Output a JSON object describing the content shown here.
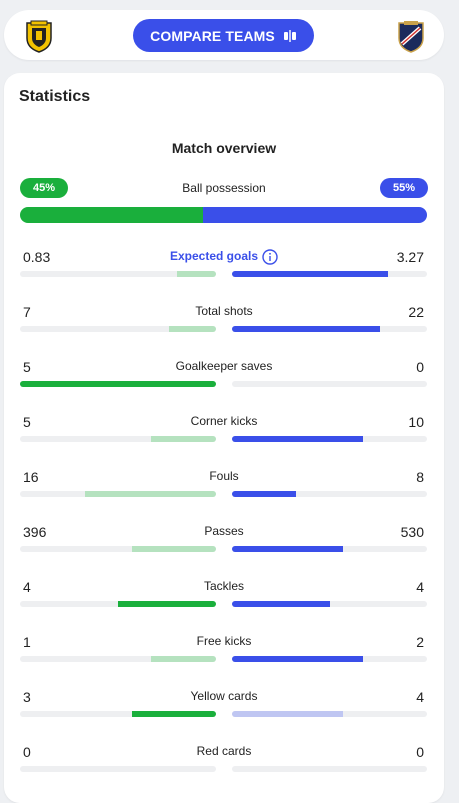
{
  "header": {
    "compare_label": "COMPARE TEAMS",
    "home_crest_icon": "home-team-crest-icon",
    "away_crest_icon": "away-team-crest-icon"
  },
  "statistics": {
    "title": "Statistics",
    "section": "Match overview",
    "possession": {
      "label": "Ball possession",
      "home_label": "45%",
      "away_label": "55%",
      "home": 45,
      "away": 55
    },
    "colors": {
      "home_strong": "#1aaf3c",
      "home_light": "#b5e2bf",
      "away_strong": "#3a4fe9",
      "away_light": "#bfc6f2",
      "track": "#eeeff1"
    },
    "rows": [
      {
        "label": "Expected goals",
        "home": "0.83",
        "away": "3.27",
        "home_frac": 0.2,
        "away_frac": 0.8,
        "home_leader": false,
        "away_leader": true,
        "link": true
      },
      {
        "label": "Total shots",
        "home": "7",
        "away": "22",
        "home_frac": 0.24,
        "away_frac": 0.76,
        "home_leader": false,
        "away_leader": true
      },
      {
        "label": "Goalkeeper saves",
        "home": "5",
        "away": "0",
        "home_frac": 1.0,
        "away_frac": 0.0,
        "home_leader": true,
        "away_leader": false
      },
      {
        "label": "Corner kicks",
        "home": "5",
        "away": "10",
        "home_frac": 0.33,
        "away_frac": 0.67,
        "home_leader": false,
        "away_leader": true
      },
      {
        "label": "Fouls",
        "home": "16",
        "away": "8",
        "home_frac": 0.67,
        "away_frac": 0.33,
        "home_leader": false,
        "away_leader": true
      },
      {
        "label": "Passes",
        "home": "396",
        "away": "530",
        "home_frac": 0.43,
        "away_frac": 0.57,
        "home_leader": false,
        "away_leader": true
      },
      {
        "label": "Tackles",
        "home": "4",
        "away": "4",
        "home_frac": 0.5,
        "away_frac": 0.5,
        "home_leader": true,
        "away_leader": true
      },
      {
        "label": "Free kicks",
        "home": "1",
        "away": "2",
        "home_frac": 0.33,
        "away_frac": 0.67,
        "home_leader": false,
        "away_leader": true
      },
      {
        "label": "Yellow cards",
        "home": "3",
        "away": "4",
        "home_frac": 0.43,
        "away_frac": 0.57,
        "home_leader": true,
        "away_leader": false
      },
      {
        "label": "Red cards",
        "home": "0",
        "away": "0",
        "home_frac": 0.0,
        "away_frac": 0.0,
        "home_leader": false,
        "away_leader": false
      }
    ]
  }
}
